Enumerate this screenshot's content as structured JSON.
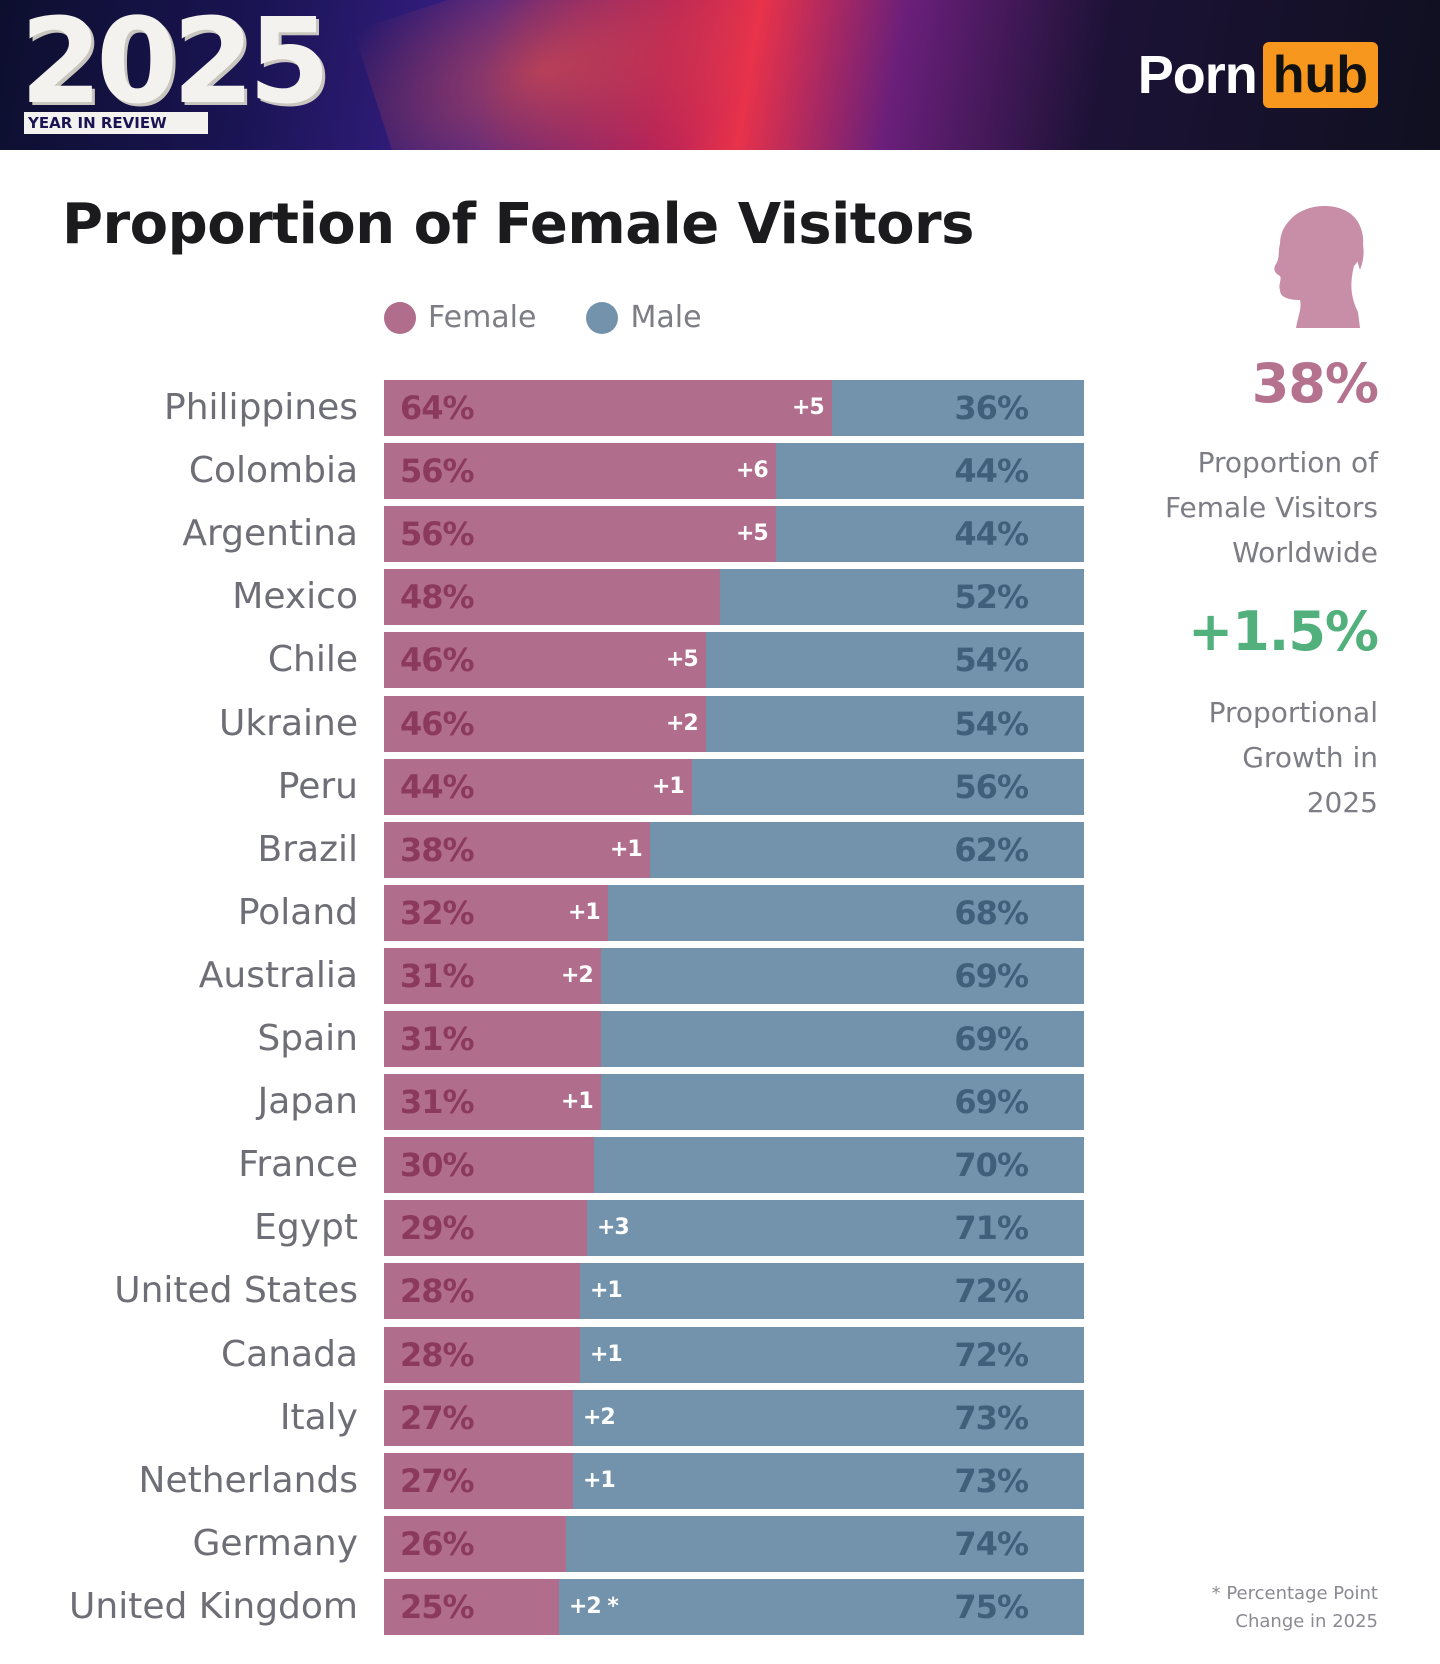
{
  "header": {
    "year": "2025",
    "subtitle": "YEAR IN REVIEW",
    "logo_left": "Porn",
    "logo_right": "hub"
  },
  "colors": {
    "female": "#b16d8c",
    "male": "#7393ad",
    "accent_female_stat": "#b5728f",
    "accent_growth": "#52b07c",
    "logo_orange": "#f7971e"
  },
  "icons": {
    "silhouette": "woman-profile-icon"
  },
  "chart_data": {
    "type": "bar",
    "orientation": "horizontal-stacked-100",
    "title": "Proportion of Female Visitors",
    "legend": [
      "Female",
      "Male"
    ],
    "legend_position": "top",
    "categories": [
      "Philippines",
      "Colombia",
      "Argentina",
      "Mexico",
      "Chile",
      "Ukraine",
      "Peru",
      "Brazil",
      "Poland",
      "Australia",
      "Spain",
      "Japan",
      "France",
      "Egypt",
      "United States",
      "Canada",
      "Italy",
      "Netherlands",
      "Germany",
      "United Kingdom"
    ],
    "series": [
      {
        "name": "Female",
        "values": [
          64,
          56,
          56,
          48,
          46,
          46,
          44,
          38,
          32,
          31,
          31,
          31,
          30,
          29,
          28,
          28,
          27,
          27,
          26,
          25
        ]
      },
      {
        "name": "Male",
        "values": [
          36,
          44,
          44,
          52,
          54,
          54,
          56,
          62,
          68,
          69,
          69,
          69,
          70,
          71,
          72,
          72,
          73,
          73,
          74,
          75
        ]
      }
    ],
    "female_labels": [
      "64%",
      "56%",
      "56%",
      "48%",
      "46%",
      "46%",
      "44%",
      "38%",
      "32%",
      "31%",
      "31%",
      "31%",
      "30%",
      "29%",
      "28%",
      "28%",
      "27%",
      "27%",
      "26%",
      "25%"
    ],
    "male_labels": [
      "36%",
      "44%",
      "44%",
      "52%",
      "54%",
      "54%",
      "56%",
      "62%",
      "68%",
      "69%",
      "69%",
      "69%",
      "70%",
      "71%",
      "72%",
      "72%",
      "73%",
      "73%",
      "74%",
      "75%"
    ],
    "change_labels": [
      "+5",
      "+6",
      "+5",
      "",
      "+5",
      "+2",
      "+1",
      "+1",
      "+1",
      "+2",
      "",
      "+1",
      "",
      "+3",
      "+1",
      "+1",
      "+2",
      "+1",
      "",
      "+2 *"
    ],
    "xlim": [
      0,
      100
    ]
  },
  "stats": {
    "worldwide_value": "38%",
    "worldwide_label": "Proportion of\nFemale Visitors\nWorldwide",
    "growth_value": "+1.5%",
    "growth_label": "Proportional\nGrowth in\n2025"
  },
  "footnote": "* Percentage Point\nChange in 2025"
}
